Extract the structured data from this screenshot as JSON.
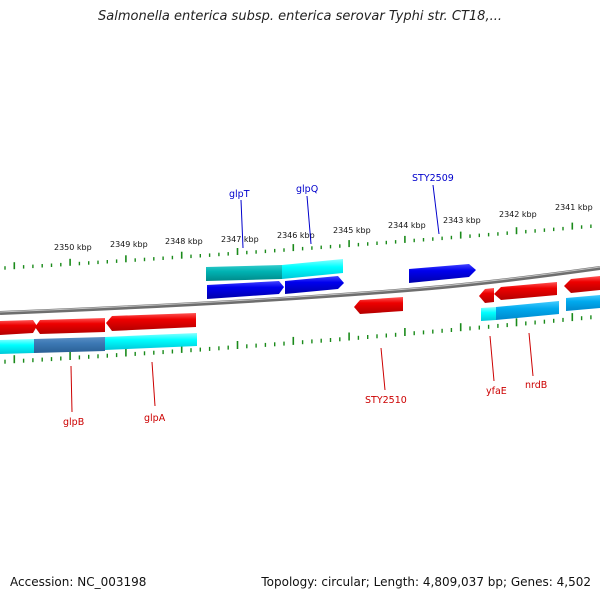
{
  "title": "Salmonella enterica subsp. enterica serovar Typhi str. CT18,...",
  "footer": {
    "accession": "Accession: NC_003198",
    "summary": "Topology: circular; Length: 4,809,037 bp; Genes: 4,502"
  },
  "ruler_labels": [
    "2350 kbp",
    "2349 kbp",
    "2348 kbp",
    "2347 kbp",
    "2346 kbp",
    "2345 kbp",
    "2344 kbp",
    "2343 kbp",
    "2342 kbp",
    "2341 kbp"
  ],
  "gene_labels": {
    "glpT": "glpT",
    "glpQ": "glpQ",
    "STY2509": "STY2509",
    "glpB": "glpB",
    "glpA": "glpA",
    "STY2510": "STY2510",
    "yfaE": "yfaE",
    "nrdB": "nrdB"
  },
  "colors": {
    "forward_cds": "#0000ee",
    "reverse_cds": "#ee0000",
    "feature_cyan": "#00ffff",
    "feature_teal": "#00b3b3",
    "feature_blue_grey": "#3c78b4",
    "tick": "#1a8a1a",
    "backbone": "#8a8a8a",
    "forward_label": "#0000cc",
    "reverse_label": "#cc0000"
  }
}
